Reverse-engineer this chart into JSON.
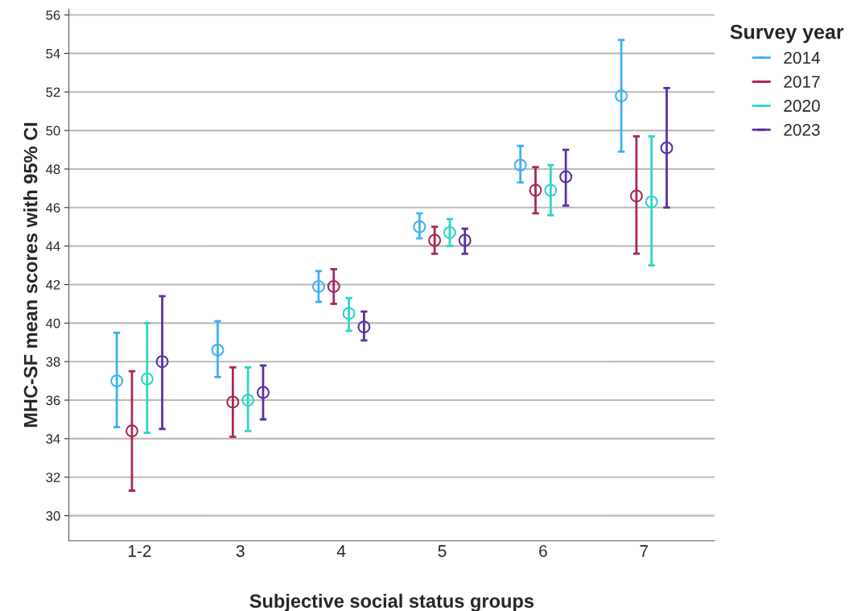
{
  "chart_data": {
    "type": "scatter",
    "xlabel": "Subjective social status groups",
    "ylabel": "MHC-SF mean scores with 95% CI",
    "legend_title": "Survey year",
    "categories": [
      "1-2",
      "3",
      "4",
      "5",
      "6",
      "7"
    ],
    "series": [
      {
        "name": "2014",
        "color": "#3fb0f5",
        "values": [
          37.0,
          38.6,
          41.9,
          45.0,
          48.2,
          51.8
        ],
        "errors": [
          [
            34.6,
            39.5
          ],
          [
            37.2,
            40.1
          ],
          [
            41.1,
            42.7
          ],
          [
            44.4,
            45.7
          ],
          [
            47.3,
            49.2
          ],
          [
            48.9,
            54.7
          ]
        ]
      },
      {
        "name": "2017",
        "color": "#a8275a",
        "values": [
          34.4,
          35.9,
          41.9,
          44.3,
          46.9,
          46.6
        ],
        "errors": [
          [
            31.3,
            37.5
          ],
          [
            34.1,
            37.7
          ],
          [
            41.0,
            42.8
          ],
          [
            43.6,
            45.0
          ],
          [
            45.7,
            48.1
          ],
          [
            43.6,
            49.7
          ]
        ]
      },
      {
        "name": "2020",
        "color": "#2ed5c8",
        "values": [
          37.1,
          36.0,
          40.5,
          44.7,
          46.9,
          46.3
        ],
        "errors": [
          [
            34.3,
            40.0
          ],
          [
            34.4,
            37.7
          ],
          [
            39.6,
            41.3
          ],
          [
            44.0,
            45.4
          ],
          [
            45.6,
            48.2
          ],
          [
            43.0,
            49.7
          ]
        ]
      },
      {
        "name": "2023",
        "color": "#5a2fa0",
        "values": [
          38.0,
          36.4,
          39.8,
          44.3,
          47.6,
          49.1
        ],
        "errors": [
          [
            34.5,
            41.4
          ],
          [
            35.0,
            37.8
          ],
          [
            39.1,
            40.6
          ],
          [
            43.6,
            44.9
          ],
          [
            46.1,
            49.0
          ],
          [
            46.0,
            52.2
          ]
        ]
      }
    ],
    "ylim": [
      28.7,
      56.3
    ],
    "yticks": [
      30,
      32,
      34,
      36,
      38,
      40,
      42,
      44,
      46,
      48,
      50,
      52,
      54,
      56
    ],
    "grid": "y",
    "legend": "top right",
    "marker": "circle"
  }
}
